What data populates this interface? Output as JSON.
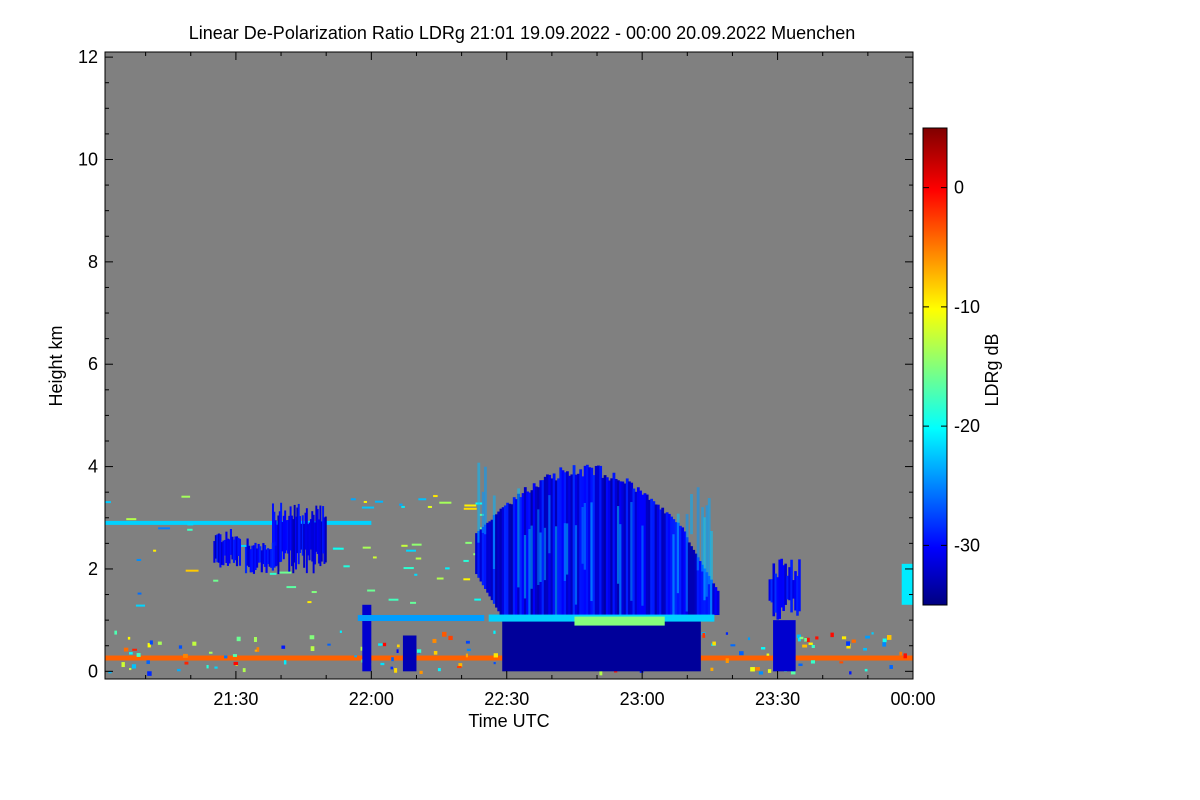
{
  "chart_data": {
    "type": "heatmap",
    "title": "Linear De-Polarization Ratio LDRg   21:01 19.09.2022 - 00:00 20.09.2022 Muenchen",
    "xlabel": "Time UTC",
    "ylabel": "Height km",
    "xlim_minutes": [
      1261,
      1440
    ],
    "x_ticks": [
      {
        "minutes": 1290,
        "label": "21:30"
      },
      {
        "minutes": 1320,
        "label": "22:00"
      },
      {
        "minutes": 1350,
        "label": "22:30"
      },
      {
        "minutes": 1380,
        "label": "23:00"
      },
      {
        "minutes": 1410,
        "label": "23:30"
      },
      {
        "minutes": 1440,
        "label": "00:00"
      }
    ],
    "ylim": [
      -0.15,
      12.1
    ],
    "y_ticks": [
      0,
      2,
      4,
      6,
      8,
      10,
      12
    ],
    "background_color": "#808080",
    "colorbar": {
      "label": "LDRg dB",
      "range": [
        -35,
        5
      ],
      "ticks": [
        0,
        -10,
        -20,
        -30
      ],
      "colormap": [
        "#000080",
        "#0000ff",
        "#00ffff",
        "#ffff00",
        "#ff0000",
        "#800000"
      ]
    },
    "features": [
      {
        "name": "main cloud deep core",
        "t0": 1349,
        "t1": 1393,
        "h0": 0.0,
        "h1": 1.1,
        "ldr": -34
      },
      {
        "name": "main cloud upper body",
        "t0": 1343,
        "t1": 1397,
        "h_base": 1.1,
        "h_top_approx": 4.1,
        "ldr": -31
      },
      {
        "name": "melting layer",
        "t0": 1346,
        "t1": 1396,
        "h": 1.05,
        "ldr": -22
      },
      {
        "name": "cloud 21:45 patch",
        "t0": 1298,
        "t1": 1310,
        "h0": 1.9,
        "h1": 3.3,
        "ldr": -31
      },
      {
        "name": "precip streak 22:00",
        "t0": 1318,
        "t1": 1320,
        "h0": 0.0,
        "h1": 1.3,
        "ldr": -32
      },
      {
        "name": "precip streak 22:10",
        "t0": 1327,
        "t1": 1330,
        "h0": 0.0,
        "h1": 0.7,
        "ldr": -33
      },
      {
        "name": "cloud 23:30",
        "t0": 1408,
        "t1": 1415,
        "h0": 0.0,
        "h1": 2.2,
        "ldr": -32
      },
      {
        "name": "aerosol layer 2.9 km",
        "t0": 1261,
        "t1": 1320,
        "h": 2.9,
        "ldr": -22
      },
      {
        "name": "surface layer",
        "t0": 1261,
        "t1": 1440,
        "h": 0.25,
        "ldr": -4
      }
    ]
  }
}
